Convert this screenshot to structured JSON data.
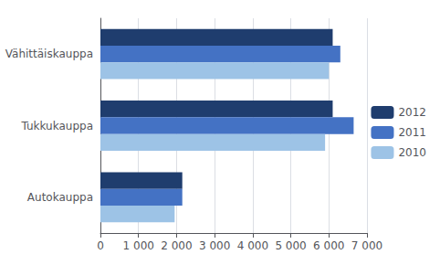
{
  "chart_data": {
    "type": "bar",
    "orientation": "horizontal",
    "categories": [
      "Vähittäiskauppa",
      "Tukkukauppa",
      "Autokauppa"
    ],
    "series": [
      {
        "name": "2012",
        "color": "#1F3D6E",
        "values": [
          6100,
          6100,
          2150
        ]
      },
      {
        "name": "2011",
        "color": "#4472C4",
        "values": [
          6300,
          6650,
          2150
        ]
      },
      {
        "name": "2010",
        "color": "#9DC3E6",
        "values": [
          6000,
          5900,
          1950
        ]
      }
    ],
    "xlim": [
      0,
      7000
    ],
    "xticks": [
      0,
      {
        "value": 1000,
        "label": "1 000"
      },
      {
        "value": 2000,
        "label": "2 000"
      },
      {
        "value": 3000,
        "label": "3 000"
      },
      {
        "value": 4000,
        "label": "4 000"
      },
      {
        "value": 5000,
        "label": "5 000"
      },
      {
        "value": 6000,
        "label": "6 000"
      },
      {
        "value": 7000,
        "label": "7 000"
      }
    ],
    "grid": true,
    "legend": "right"
  }
}
